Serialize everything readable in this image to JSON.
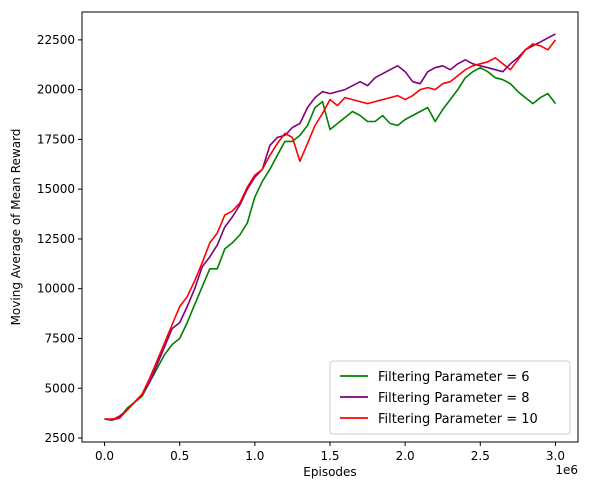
{
  "chart_data": {
    "type": "line",
    "xlabel": "Episodes",
    "ylabel": "Moving Average of Mean Reward",
    "x_offset_text": "1e6",
    "xlim": [
      -0.15,
      3.15
    ],
    "ylim": [
      2300,
      23900
    ],
    "x_ticks": [
      0.0,
      0.5,
      1.0,
      1.5,
      2.0,
      2.5,
      3.0
    ],
    "x_tick_labels": [
      "0.0",
      "0.5",
      "1.0",
      "1.5",
      "2.0",
      "2.5",
      "3.0"
    ],
    "y_ticks": [
      2500,
      5000,
      7500,
      10000,
      12500,
      15000,
      17500,
      20000,
      22500
    ],
    "y_tick_labels": [
      "2500",
      "5000",
      "7500",
      "10000",
      "12500",
      "15000",
      "17500",
      "20000",
      "22500"
    ],
    "legend_position": "lower-right",
    "series": [
      {
        "name": "Filtering Parameter = 6",
        "color": "#008000",
        "x": [
          0.0,
          0.05,
          0.1,
          0.15,
          0.2,
          0.25,
          0.3,
          0.35,
          0.4,
          0.45,
          0.5,
          0.55,
          0.6,
          0.65,
          0.7,
          0.75,
          0.8,
          0.85,
          0.9,
          0.95,
          1.0,
          1.05,
          1.1,
          1.15,
          1.2,
          1.25,
          1.3,
          1.35,
          1.4,
          1.45,
          1.5,
          1.55,
          1.6,
          1.65,
          1.7,
          1.75,
          1.8,
          1.85,
          1.9,
          1.95,
          2.0,
          2.05,
          2.1,
          2.15,
          2.2,
          2.25,
          2.3,
          2.35,
          2.4,
          2.45,
          2.5,
          2.55,
          2.6,
          2.65,
          2.7,
          2.75,
          2.8,
          2.85,
          2.9,
          2.95,
          3.0
        ],
        "y": [
          3450,
          3400,
          3500,
          4000,
          4300,
          4600,
          5300,
          6000,
          6700,
          7200,
          7500,
          8300,
          9200,
          10100,
          11000,
          11000,
          12000,
          12300,
          12700,
          13300,
          14600,
          15400,
          16000,
          16700,
          17400,
          17400,
          17700,
          18200,
          19100,
          19400,
          18000,
          18300,
          18600,
          18900,
          18700,
          18400,
          18400,
          18700,
          18300,
          18200,
          18500,
          18700,
          18900,
          19100,
          18400,
          19000,
          19500,
          20000,
          20600,
          20900,
          21100,
          20900,
          20600,
          20500,
          20300,
          19900,
          19600,
          19300,
          19600,
          19800,
          19300
        ]
      },
      {
        "name": "Filtering Parameter = 8",
        "color": "#800080",
        "x": [
          0.0,
          0.05,
          0.1,
          0.15,
          0.2,
          0.25,
          0.3,
          0.35,
          0.4,
          0.45,
          0.5,
          0.55,
          0.6,
          0.65,
          0.7,
          0.75,
          0.8,
          0.85,
          0.9,
          0.95,
          1.0,
          1.05,
          1.1,
          1.15,
          1.2,
          1.25,
          1.3,
          1.35,
          1.4,
          1.45,
          1.5,
          1.55,
          1.6,
          1.65,
          1.7,
          1.75,
          1.8,
          1.85,
          1.9,
          1.95,
          2.0,
          2.05,
          2.1,
          2.15,
          2.2,
          2.25,
          2.3,
          2.35,
          2.4,
          2.45,
          2.5,
          2.55,
          2.6,
          2.65,
          2.7,
          2.75,
          2.8,
          2.85,
          2.9,
          2.95,
          3.0
        ],
        "y": [
          3450,
          3400,
          3600,
          3900,
          4300,
          4700,
          5300,
          6200,
          7100,
          8000,
          8300,
          9100,
          10000,
          11100,
          11600,
          12200,
          13100,
          13600,
          14200,
          15000,
          15600,
          16000,
          17200,
          17600,
          17700,
          18100,
          18300,
          19100,
          19600,
          19900,
          19800,
          19900,
          20000,
          20200,
          20400,
          20200,
          20600,
          20800,
          21000,
          21200,
          20900,
          20400,
          20300,
          20900,
          21100,
          21200,
          21000,
          21300,
          21500,
          21300,
          21200,
          21100,
          21000,
          20900,
          21300,
          21600,
          22000,
          22200,
          22400,
          22600,
          22800
        ]
      },
      {
        "name": "Filtering Parameter = 10",
        "color": "#ff0000",
        "x": [
          0.0,
          0.05,
          0.1,
          0.15,
          0.2,
          0.25,
          0.3,
          0.35,
          0.4,
          0.45,
          0.5,
          0.55,
          0.6,
          0.65,
          0.7,
          0.75,
          0.8,
          0.85,
          0.9,
          0.95,
          1.0,
          1.05,
          1.1,
          1.15,
          1.2,
          1.25,
          1.3,
          1.35,
          1.4,
          1.45,
          1.5,
          1.55,
          1.6,
          1.65,
          1.7,
          1.75,
          1.8,
          1.85,
          1.9,
          1.95,
          2.0,
          2.05,
          2.1,
          2.15,
          2.2,
          2.25,
          2.3,
          2.35,
          2.4,
          2.45,
          2.5,
          2.55,
          2.6,
          2.65,
          2.7,
          2.75,
          2.8,
          2.85,
          2.9,
          2.95,
          3.0
        ],
        "y": [
          3450,
          3450,
          3500,
          3900,
          4300,
          4700,
          5500,
          6400,
          7300,
          8200,
          9100,
          9600,
          10400,
          11300,
          12300,
          12800,
          13700,
          13900,
          14300,
          15100,
          15700,
          16000,
          16700,
          17300,
          17800,
          17600,
          16400,
          17300,
          18200,
          18800,
          19500,
          19200,
          19600,
          19500,
          19400,
          19300,
          19400,
          19500,
          19600,
          19700,
          19500,
          19700,
          20000,
          20100,
          20000,
          20300,
          20400,
          20700,
          21000,
          21200,
          21300,
          21400,
          21600,
          21300,
          21000,
          21500,
          22000,
          22300,
          22200,
          22000,
          22500
        ]
      }
    ]
  }
}
